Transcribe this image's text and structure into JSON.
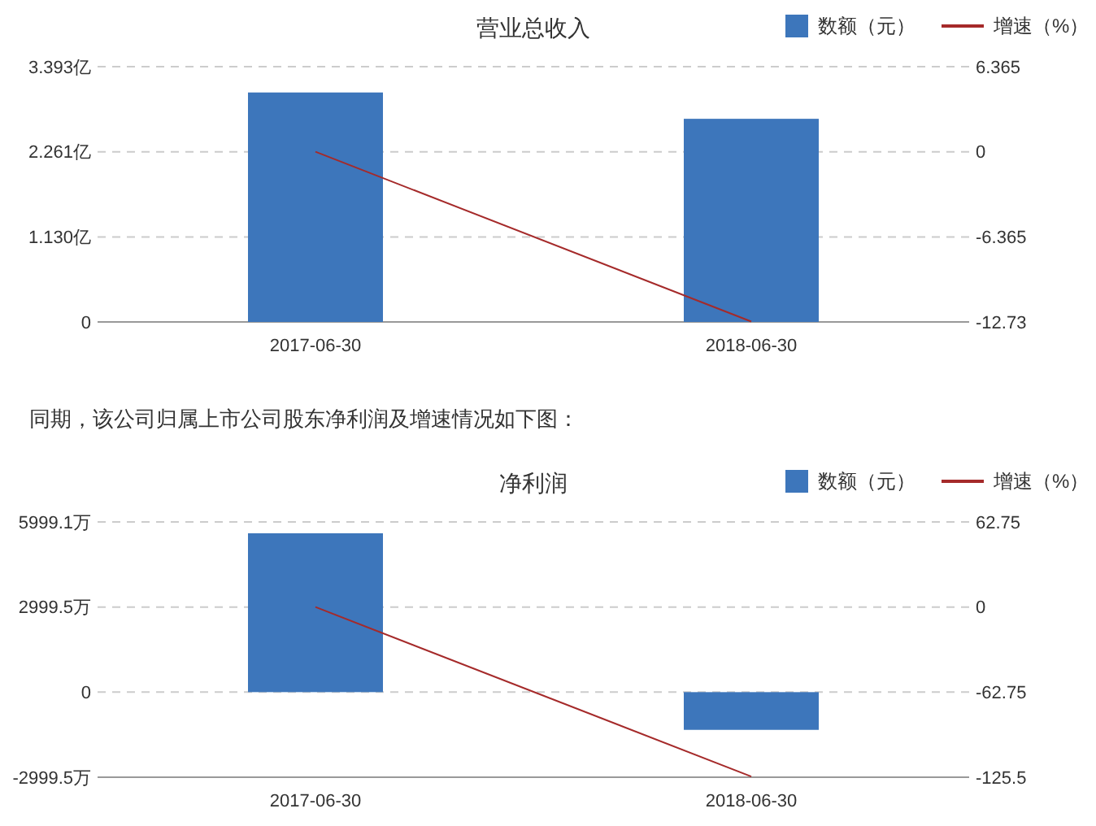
{
  "chart_data": [
    {
      "type": "bar",
      "title": "营业总收入",
      "categories": [
        "2017-06-30",
        "2018-06-30"
      ],
      "series": [
        {
          "name": "数额（元）",
          "color": "#3d76bb",
          "values": [
            3.05,
            2.7
          ]
        },
        {
          "name": "增速（%）",
          "type": "line",
          "axis": "y2",
          "color": "#a52a2a",
          "values": [
            0,
            -12.7
          ]
        }
      ],
      "ylim": [
        0,
        3.393
      ],
      "yticks": [
        0,
        {
          "value": 1.13,
          "label": "1.130亿"
        },
        {
          "value": 2.261,
          "label": "2.261亿"
        },
        {
          "value": 3.393,
          "label": "3.393亿"
        }
      ],
      "y2lim": [
        -12.73,
        6.365
      ],
      "y2ticks": [
        -12.73,
        -6.365,
        0,
        6.365
      ],
      "grid": "y",
      "legend": "top right"
    },
    {
      "type": "bar",
      "title": "净利润",
      "annotations": [
        "同期，该公司归属上市公司股东净利润及增速情况如下图："
      ],
      "categories": [
        "2017-06-30",
        "2018-06-30"
      ],
      "series": [
        {
          "name": "数额（元）",
          "color": "#3d76bb",
          "values": [
            5600,
            -1330
          ]
        },
        {
          "name": "增速（%）",
          "type": "line",
          "axis": "y2",
          "color": "#a52a2a",
          "values": [
            0,
            -125
          ]
        }
      ],
      "ylim": [
        -2999.5,
        5999.1
      ],
      "yticks": [
        {
          "value": -2999.5,
          "label": "-2999.5万"
        },
        0,
        {
          "value": 2999.5,
          "label": "2999.5万"
        },
        {
          "value": 5999.1,
          "label": "5999.1万"
        }
      ],
      "y2lim": [
        -125.5,
        62.75
      ],
      "y2ticks": [
        -125.5,
        -62.75,
        0,
        62.75
      ],
      "grid": "y",
      "legend": "top right"
    }
  ]
}
